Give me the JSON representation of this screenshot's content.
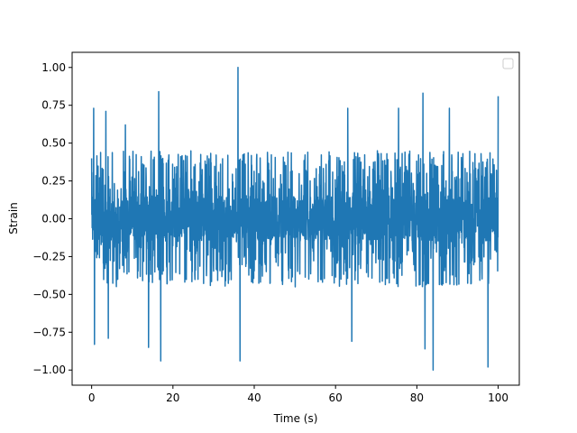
{
  "chart_data": {
    "type": "line",
    "title": "",
    "xlabel": "Time (s)",
    "ylabel": "Strain",
    "xlim": [
      -4.8,
      105.2
    ],
    "ylim": [
      -1.1,
      1.1
    ],
    "x_ticks": [
      0,
      20,
      40,
      60,
      80,
      100
    ],
    "x_tick_labels": [
      "0",
      "20",
      "40",
      "60",
      "80",
      "100"
    ],
    "y_ticks": [
      -1.0,
      -0.75,
      -0.5,
      -0.25,
      0.0,
      0.25,
      0.5,
      0.75,
      1.0
    ],
    "y_tick_labels": [
      "−1.00",
      "−0.75",
      "−0.50",
      "−0.25",
      "0.00",
      "0.25",
      "0.50",
      "0.75",
      "1.00"
    ],
    "grid": false,
    "legend": {
      "placement": "upper-right",
      "entries": []
    },
    "series_color": "#1f77b4",
    "series": [
      {
        "x_range": [
          0,
          100
        ],
        "min": -1.0,
        "max": 1.0,
        "typical_band": [
          -0.5,
          0.5
        ],
        "peaks": [
          {
            "x": 0.5,
            "y": 0.73
          },
          {
            "x": 0.7,
            "y": -0.83
          },
          {
            "x": 3.5,
            "y": 0.71
          },
          {
            "x": 4.1,
            "y": -0.79
          },
          {
            "x": 8.3,
            "y": 0.62
          },
          {
            "x": 14.0,
            "y": -0.85
          },
          {
            "x": 16.5,
            "y": 0.84
          },
          {
            "x": 17.0,
            "y": -0.94
          },
          {
            "x": 36.0,
            "y": 1.0
          },
          {
            "x": 36.5,
            "y": -0.94
          },
          {
            "x": 63.0,
            "y": 0.73
          },
          {
            "x": 64.0,
            "y": -0.81
          },
          {
            "x": 75.5,
            "y": 0.73
          },
          {
            "x": 81.5,
            "y": 0.83
          },
          {
            "x": 82.0,
            "y": -0.86
          },
          {
            "x": 84.0,
            "y": -1.0
          },
          {
            "x": 88.0,
            "y": 0.73
          },
          {
            "x": 97.5,
            "y": -0.98
          },
          {
            "x": 100.0,
            "y": 0.81
          }
        ]
      }
    ]
  }
}
